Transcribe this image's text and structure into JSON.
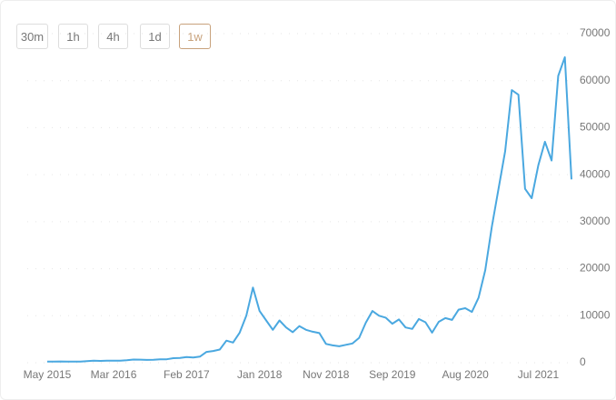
{
  "buttons": [
    "30m",
    "1h",
    "4h",
    "1d",
    "1w"
  ],
  "active_button": 4,
  "chart_data": {
    "type": "line",
    "color": "#4aa8e0",
    "x": [
      "2015-05",
      "2015-06",
      "2015-07",
      "2015-08",
      "2015-09",
      "2015-10",
      "2015-11",
      "2015-12",
      "2016-01",
      "2016-02",
      "2016-03",
      "2016-04",
      "2016-05",
      "2016-06",
      "2016-07",
      "2016-08",
      "2016-09",
      "2016-10",
      "2016-11",
      "2016-12",
      "2017-01",
      "2017-02",
      "2017-03",
      "2017-04",
      "2017-05",
      "2017-06",
      "2017-07",
      "2017-08",
      "2017-09",
      "2017-10",
      "2017-11",
      "2017-12",
      "2018-01",
      "2018-02",
      "2018-03",
      "2018-04",
      "2018-05",
      "2018-06",
      "2018-07",
      "2018-08",
      "2018-09",
      "2018-10",
      "2018-11",
      "2018-12",
      "2019-01",
      "2019-02",
      "2019-03",
      "2019-04",
      "2019-05",
      "2019-06",
      "2019-07",
      "2019-08",
      "2019-09",
      "2019-10",
      "2019-11",
      "2019-12",
      "2020-01",
      "2020-02",
      "2020-03",
      "2020-04",
      "2020-05",
      "2020-06",
      "2020-07",
      "2020-08",
      "2020-09",
      "2020-10",
      "2020-11",
      "2020-12",
      "2021-01",
      "2021-02",
      "2021-03",
      "2021-04",
      "2021-05",
      "2021-06",
      "2021-07",
      "2021-08",
      "2021-09",
      "2021-10",
      "2021-11",
      "2021-12"
    ],
    "values": [
      240,
      230,
      280,
      250,
      230,
      250,
      350,
      430,
      380,
      430,
      420,
      450,
      530,
      670,
      650,
      600,
      610,
      720,
      740,
      960,
      1000,
      1200,
      1100,
      1300,
      2300,
      2500,
      2800,
      4700,
      4300,
      6400,
      10000,
      16000,
      11000,
      9000,
      7000,
      9000,
      7500,
      6500,
      7800,
      7000,
      6600,
      6300,
      4000,
      3700,
      3500,
      3800,
      4100,
      5300,
      8500,
      11000,
      10000,
      9600,
      8300,
      9200,
      7500,
      7200,
      9300,
      8600,
      6400,
      8700,
      9500,
      9100,
      11300,
      11600,
      10800,
      13800,
      19700,
      29000,
      37000,
      45000,
      58000,
      57000,
      37000,
      35000,
      42000,
      47000,
      43000,
      61000,
      65000,
      39000
    ],
    "xlim": [
      "2015-05",
      "2021-12"
    ],
    "xticks": [
      {
        "value": "2015-05",
        "label": "May 2015"
      },
      {
        "value": "2016-03",
        "label": "Mar 2016"
      },
      {
        "value": "2017-02",
        "label": "Feb 2017"
      },
      {
        "value": "2018-01",
        "label": "Jan 2018"
      },
      {
        "value": "2018-11",
        "label": "Nov 2018"
      },
      {
        "value": "2019-09",
        "label": "Sep 2019"
      },
      {
        "value": "2020-08",
        "label": "Aug 2020"
      },
      {
        "value": "2021-07",
        "label": "Jul 2021"
      }
    ],
    "ylim": [
      0,
      70000
    ],
    "yticks": [
      0,
      10000,
      20000,
      30000,
      40000,
      50000,
      60000,
      70000
    ],
    "grid": true
  }
}
